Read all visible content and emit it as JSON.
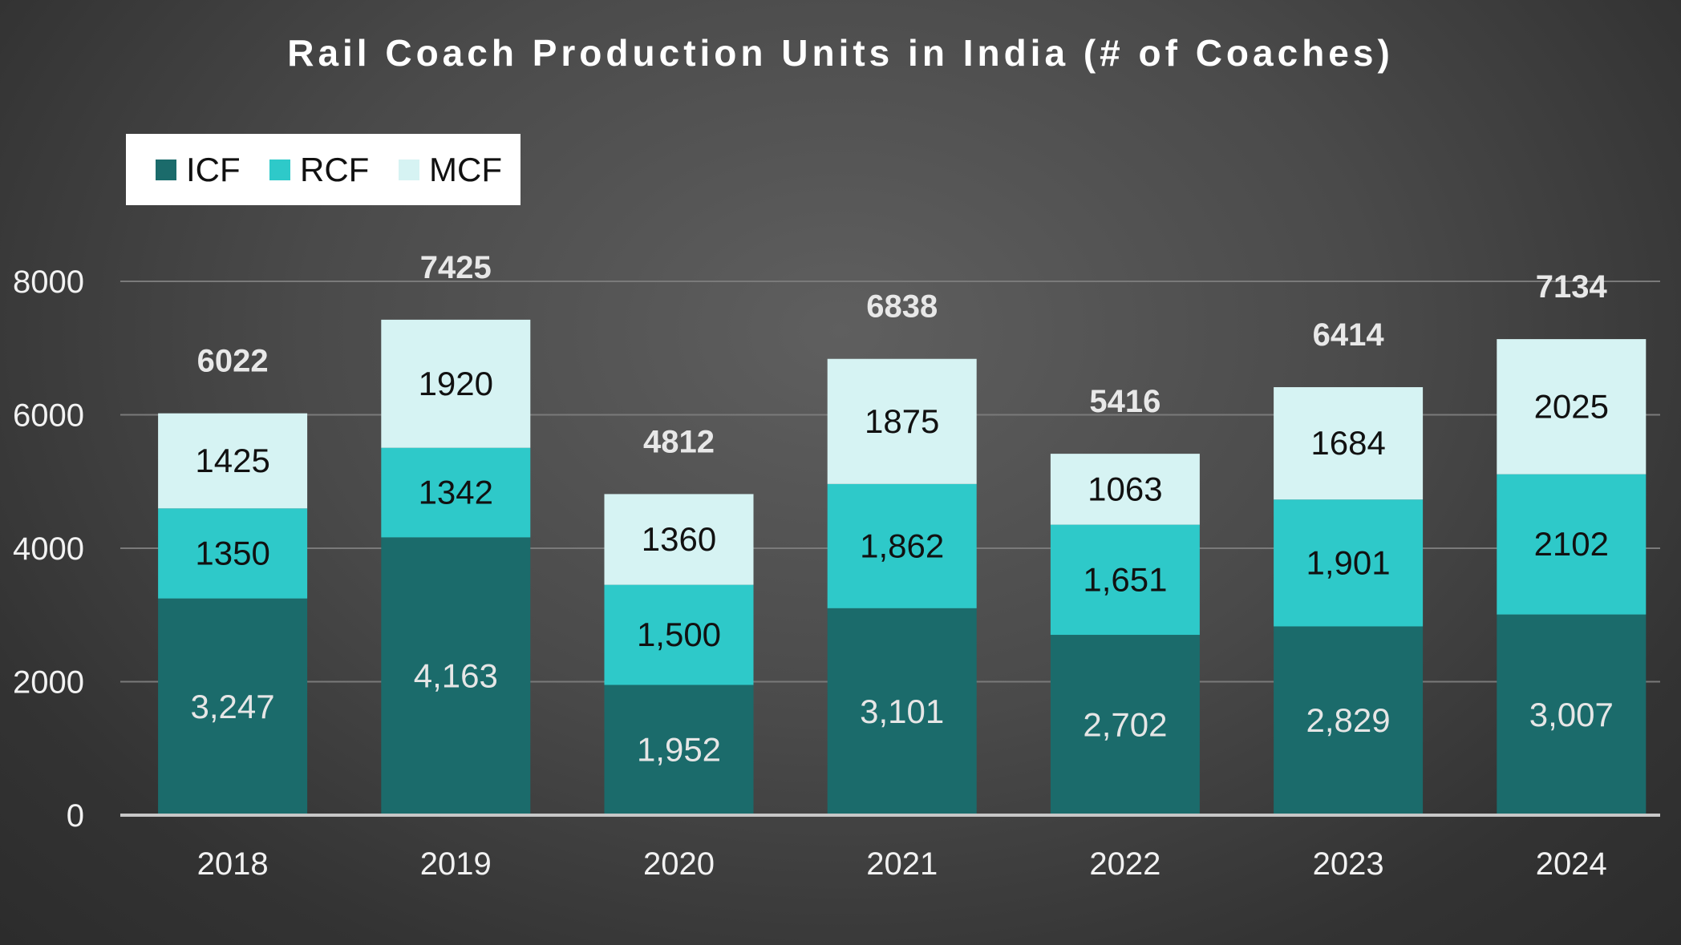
{
  "chart_data": {
    "type": "bar",
    "stacked": true,
    "title": "Rail Coach Production Units in India (# of Coaches)",
    "xlabel": "",
    "ylabel": "",
    "ylim": [
      0,
      8000
    ],
    "yticks": [
      0,
      2000,
      4000,
      6000,
      8000
    ],
    "y_tick_labels": [
      "0",
      "2000",
      "4000",
      "6000",
      "8000"
    ],
    "grid": true,
    "legend_position": "top-left",
    "categories": [
      "2018",
      "2019",
      "2020",
      "2021",
      "2022",
      "2023",
      "2024"
    ],
    "series": [
      {
        "name": "ICF",
        "color": "#1b6b6b",
        "label_color": "#e6e6e6",
        "values": [
          3247,
          4163,
          1952,
          3101,
          2702,
          2829,
          3007
        ],
        "labels": [
          "3,247",
          "4,163",
          "1,952",
          "3,101",
          "2,702",
          "2,829",
          "3,007"
        ]
      },
      {
        "name": "RCF",
        "color": "#2ec9c9",
        "label_color": "#111111",
        "values": [
          1350,
          1342,
          1500,
          1862,
          1651,
          1901,
          2102
        ],
        "labels": [
          "1350",
          "1342",
          "1,500",
          "1,862",
          "1,651",
          "1,901",
          "2102"
        ]
      },
      {
        "name": "MCF",
        "color": "#d6f3f3",
        "label_color": "#111111",
        "values": [
          1425,
          1920,
          1360,
          1875,
          1063,
          1684,
          2025
        ],
        "labels": [
          "1425",
          "1920",
          "1360",
          "1875",
          "1063",
          "1684",
          "2025"
        ]
      }
    ],
    "totals": [
      6022,
      7425,
      4812,
      6838,
      5416,
      6414,
      7134
    ],
    "total_labels": [
      "6022",
      "7425",
      "4812",
      "6838",
      "5416",
      "6414",
      "7134"
    ]
  }
}
